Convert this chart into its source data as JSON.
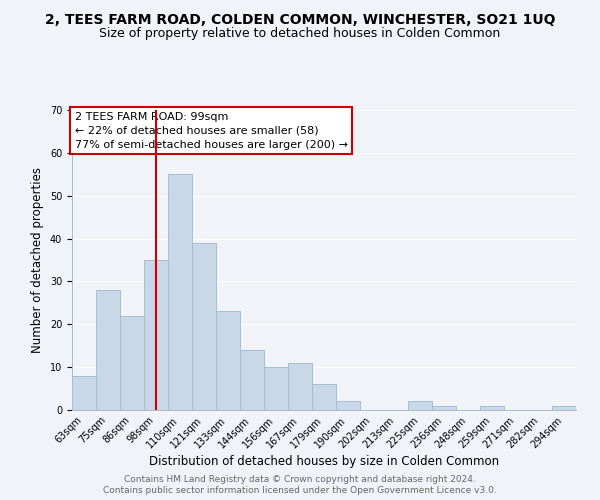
{
  "title": "2, TEES FARM ROAD, COLDEN COMMON, WINCHESTER, SO21 1UQ",
  "subtitle": "Size of property relative to detached houses in Colden Common",
  "xlabel": "Distribution of detached houses by size in Colden Common",
  "ylabel": "Number of detached properties",
  "bin_labels": [
    "63sqm",
    "75sqm",
    "86sqm",
    "98sqm",
    "110sqm",
    "121sqm",
    "133sqm",
    "144sqm",
    "156sqm",
    "167sqm",
    "179sqm",
    "190sqm",
    "202sqm",
    "213sqm",
    "225sqm",
    "236sqm",
    "248sqm",
    "259sqm",
    "271sqm",
    "282sqm",
    "294sqm"
  ],
  "bar_heights": [
    8,
    28,
    22,
    35,
    55,
    39,
    23,
    14,
    10,
    11,
    6,
    2,
    0,
    0,
    2,
    1,
    0,
    1,
    0,
    0,
    1
  ],
  "bar_color": "#c8d8e8",
  "bar_edge_color": "#a0b8cc",
  "vline_x_index": 3.5,
  "vline_color": "#cc0000",
  "ylim": [
    0,
    70
  ],
  "yticks": [
    0,
    10,
    20,
    30,
    40,
    50,
    60,
    70
  ],
  "annotation_lines": [
    "2 TEES FARM ROAD: 99sqm",
    "← 22% of detached houses are smaller (58)",
    "77% of semi-detached houses are larger (200) →"
  ],
  "annotation_box_color": "#ffffff",
  "annotation_box_edge_color": "#cc0000",
  "footer_line1": "Contains HM Land Registry data © Crown copyright and database right 2024.",
  "footer_line2": "Contains public sector information licensed under the Open Government Licence v3.0.",
  "background_color": "#f0f4f8",
  "grid_color": "#ffffff",
  "title_fontsize": 10,
  "subtitle_fontsize": 9,
  "axis_label_fontsize": 8.5,
  "tick_fontsize": 7,
  "annotation_fontsize": 8,
  "footer_fontsize": 6.5
}
